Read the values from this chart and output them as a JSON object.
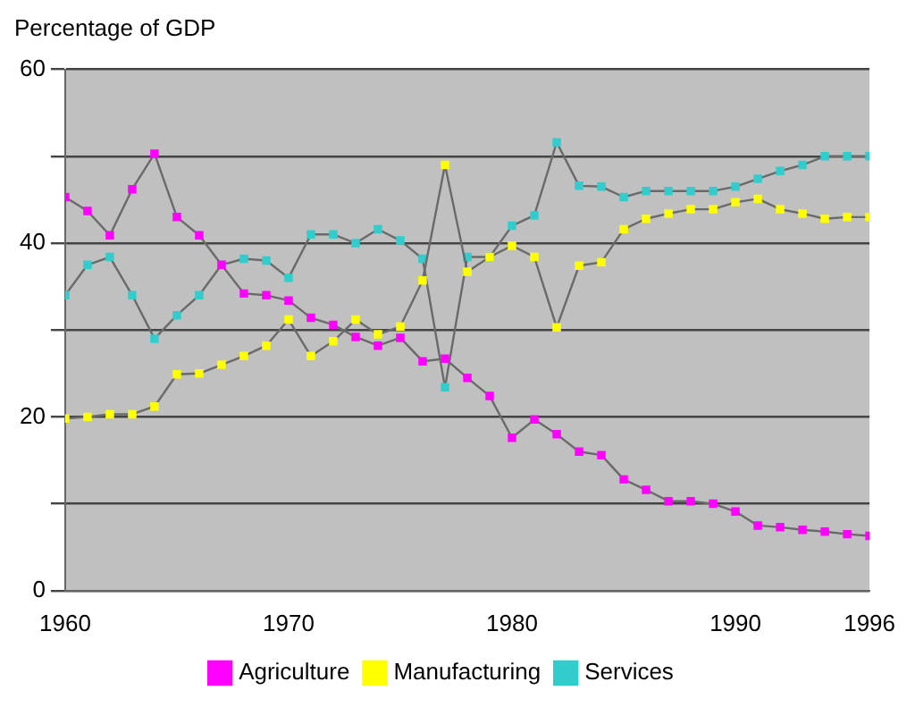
{
  "chart_data": {
    "type": "line",
    "ylabel": "Percentage of GDP",
    "x": [
      1960,
      1961,
      1962,
      1963,
      1964,
      1965,
      1966,
      1967,
      1968,
      1969,
      1970,
      1971,
      1972,
      1973,
      1974,
      1975,
      1976,
      1977,
      1978,
      1979,
      1980,
      1981,
      1982,
      1983,
      1984,
      1985,
      1986,
      1987,
      1988,
      1989,
      1990,
      1991,
      1992,
      1993,
      1994,
      1995,
      1996
    ],
    "series": [
      {
        "name": "Agriculture",
        "color": "#ff00ff",
        "values": [
          45.3,
          43.7,
          40.9,
          46.2,
          50.3,
          43,
          40.9,
          37.5,
          34.2,
          34,
          33.4,
          31.4,
          30.6,
          29.2,
          28.2,
          29.1,
          26.4,
          26.7,
          24.5,
          22.4,
          17.6,
          19.7,
          18,
          16,
          15.6,
          12.8,
          11.6,
          10.3,
          10.3,
          10,
          9.1,
          7.5,
          7.3,
          7,
          6.8,
          6.5,
          6.3
        ]
      },
      {
        "name": "Manufacturing",
        "color": "#ffff00",
        "values": [
          19.8,
          20,
          20.3,
          20.3,
          21.2,
          24.9,
          25,
          26,
          27,
          28.2,
          31.2,
          27,
          28.7,
          31.2,
          29.5,
          30.4,
          35.7,
          49,
          36.7,
          38.4,
          39.7,
          38.4,
          30.3,
          37.4,
          37.8,
          41.6,
          42.8,
          43.4,
          43.9,
          43.9,
          44.7,
          45.1,
          43.9,
          43.4,
          42.8,
          43,
          43
        ]
      },
      {
        "name": "Services",
        "color": "#33cccc",
        "values": [
          34,
          37.5,
          38.4,
          34,
          29,
          31.7,
          34,
          37.5,
          38.2,
          38,
          36,
          41,
          41,
          40,
          41.6,
          40.3,
          38.2,
          23.4,
          38.4,
          38.4,
          42,
          43.2,
          51.6,
          46.6,
          46.5,
          45.3,
          46,
          46,
          46,
          46,
          46.5,
          47.4,
          48.3,
          49,
          50,
          50,
          50
        ]
      }
    ],
    "xlim": [
      1960,
      1996
    ],
    "xticks": [
      1960,
      1970,
      1980,
      1990,
      1996
    ],
    "ylim": [
      0,
      60
    ],
    "yticks": [
      0,
      {
        "value": 10,
        "label": null
      },
      20,
      {
        "value": 30,
        "label": null
      },
      40,
      {
        "value": 50,
        "label": null
      },
      60
    ],
    "grid": "y",
    "legend": "bottom",
    "marker": "square",
    "line_style": "solid"
  }
}
